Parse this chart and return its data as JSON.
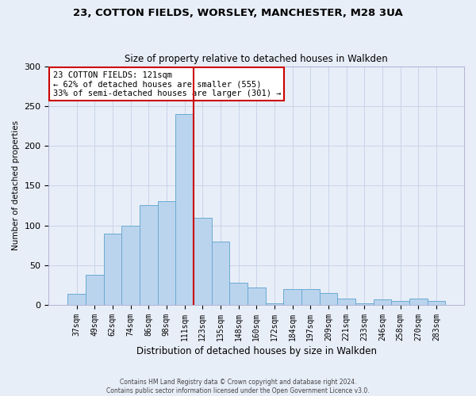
{
  "title_line1": "23, COTTON FIELDS, WORSLEY, MANCHESTER, M28 3UA",
  "title_line2": "Size of property relative to detached houses in Walkden",
  "xlabel": "Distribution of detached houses by size in Walkden",
  "ylabel": "Number of detached properties",
  "footer_line1": "Contains HM Land Registry data © Crown copyright and database right 2024.",
  "footer_line2": "Contains public sector information licensed under the Open Government Licence v3.0.",
  "categories": [
    "37sqm",
    "49sqm",
    "62sqm",
    "74sqm",
    "86sqm",
    "98sqm",
    "111sqm",
    "123sqm",
    "135sqm",
    "148sqm",
    "160sqm",
    "172sqm",
    "184sqm",
    "197sqm",
    "209sqm",
    "221sqm",
    "233sqm",
    "246sqm",
    "258sqm",
    "270sqm",
    "283sqm"
  ],
  "values": [
    14,
    38,
    90,
    100,
    125,
    130,
    240,
    110,
    80,
    28,
    22,
    2,
    20,
    20,
    15,
    8,
    2,
    7,
    5,
    8,
    5
  ],
  "bar_color": "#bad4ed",
  "bar_edge_color": "#6aaad4",
  "grid_color": "#c8d4e8",
  "background_color": "#e8eef8",
  "vline_color": "#cc0000",
  "annotation_text": "23 COTTON FIELDS: 121sqm\n← 62% of detached houses are smaller (555)\n33% of semi-detached houses are larger (301) →",
  "annotation_box_color": "#ffffff",
  "annotation_box_edge": "#cc0000",
  "ylim": [
    0,
    300
  ],
  "yticks": [
    0,
    50,
    100,
    150,
    200,
    250,
    300
  ]
}
